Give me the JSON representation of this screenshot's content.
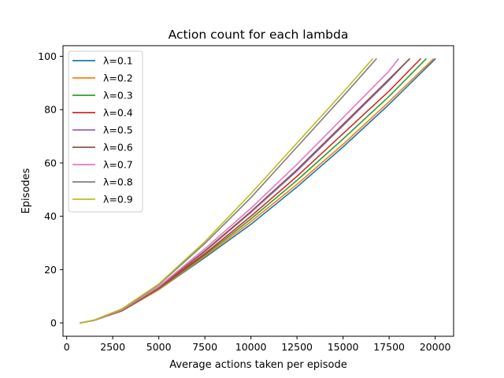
{
  "chart_data": {
    "type": "line",
    "title": "Action count for each lambda",
    "xlabel": "Average actions taken per episode",
    "ylabel": "Episodes",
    "xlim": [
      -200,
      21000
    ],
    "ylim": [
      -5,
      104
    ],
    "xticks": [
      0,
      2500,
      5000,
      7500,
      10000,
      12500,
      15000,
      17500,
      20000
    ],
    "yticks": [
      0,
      20,
      40,
      60,
      80,
      100
    ],
    "grid": false,
    "legend_position": "top-left",
    "series": [
      {
        "name": "λ=0.1",
        "color": "#1f77b4",
        "x": [
          750,
          1500,
          3000,
          5000,
          7500,
          10000,
          12500,
          15000,
          17500,
          20000
        ],
        "y": [
          0,
          1,
          4.5,
          12.5,
          24.5,
          37,
          51,
          66,
          82,
          99
        ]
      },
      {
        "name": "λ=0.2",
        "color": "#ff7f0e",
        "x": [
          750,
          1500,
          3000,
          5000,
          7500,
          10000,
          12500,
          15000,
          17500,
          19900
        ],
        "y": [
          0,
          1,
          4.5,
          12.5,
          25,
          38,
          52,
          67,
          83,
          99
        ]
      },
      {
        "name": "λ=0.3",
        "color": "#2ca02c",
        "x": [
          750,
          1500,
          3000,
          5000,
          7500,
          10000,
          12500,
          15000,
          17500,
          19500
        ],
        "y": [
          0,
          1,
          4.6,
          12.8,
          25.5,
          39,
          53.5,
          69,
          85,
          99
        ]
      },
      {
        "name": "λ=0.4",
        "color": "#d62728",
        "x": [
          750,
          1500,
          3000,
          5000,
          7500,
          10000,
          12500,
          15000,
          17500,
          19200
        ],
        "y": [
          0,
          1,
          4.7,
          13,
          26,
          40,
          55,
          71,
          87,
          99
        ]
      },
      {
        "name": "λ=0.5",
        "color": "#9467bd",
        "x": [
          750,
          1500,
          3000,
          5000,
          7500,
          10000,
          12500,
          15000,
          17500,
          18600
        ],
        "y": [
          0,
          1,
          4.8,
          13.2,
          26.8,
          41.5,
          57,
          74,
          91,
          99
        ]
      },
      {
        "name": "λ=0.6",
        "color": "#8c564b",
        "x": [
          750,
          1500,
          3000,
          5000,
          7500,
          10000,
          12500,
          15000,
          17500,
          18600
        ],
        "y": [
          0,
          1,
          4.8,
          13.3,
          27,
          41.8,
          57.5,
          74.5,
          91.5,
          99
        ]
      },
      {
        "name": "λ=0.7",
        "color": "#e377c2",
        "x": [
          750,
          1500,
          3000,
          5000,
          7500,
          10000,
          12500,
          15000,
          17500,
          18000
        ],
        "y": [
          0,
          1,
          4.9,
          13.6,
          27.8,
          43,
          59.5,
          77,
          94.5,
          99
        ]
      },
      {
        "name": "λ=0.8",
        "color": "#7f7f7f",
        "x": [
          750,
          1500,
          3000,
          5000,
          7500,
          10000,
          12500,
          15000,
          16800
        ],
        "y": [
          0,
          1.1,
          5.2,
          14.3,
          29.8,
          47,
          66,
          85,
          99
        ]
      },
      {
        "name": "λ=0.9",
        "color": "#bcbd22",
        "x": [
          750,
          1500,
          3000,
          5000,
          7500,
          10000,
          12500,
          15000,
          16600
        ],
        "y": [
          0,
          1.1,
          5.3,
          14.6,
          30.5,
          48.5,
          67.5,
          86.5,
          99
        ]
      }
    ]
  }
}
